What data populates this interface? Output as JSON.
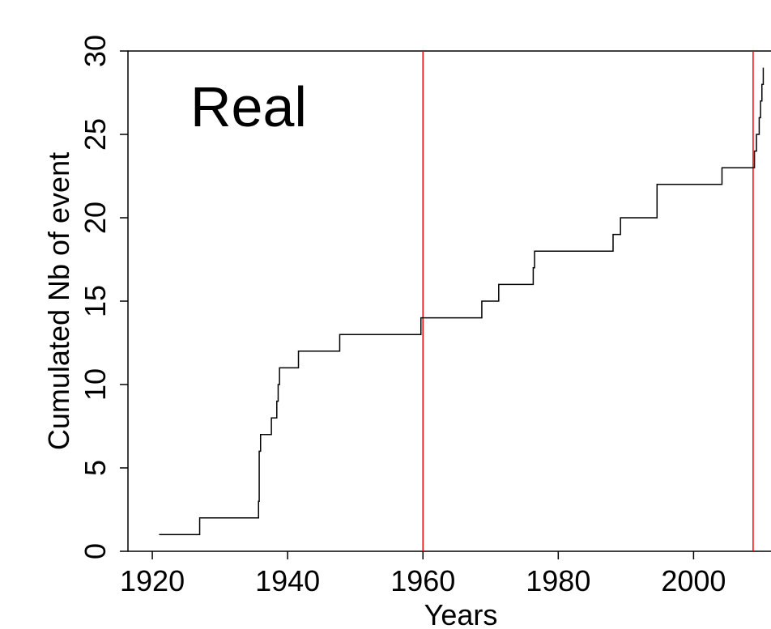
{
  "chart_data": {
    "type": "step",
    "annotation": "Real",
    "x_label": "Years",
    "y_label": "Cumulated Nb of event",
    "x": [
      1921,
      1927,
      1935.7,
      1935.8,
      1936,
      1937.6,
      1938.4,
      1938.6,
      1938.8,
      1941.6,
      1947.7,
      1959.7,
      1968.7,
      1971.2,
      1976.3,
      1976.5,
      1988.1,
      1989.2,
      1994.6,
      2004.2,
      2009.0,
      2009.3,
      2009.7,
      2009.9,
      2010.1,
      2010.3
    ],
    "values": [
      1,
      2,
      3,
      6,
      7,
      8,
      9,
      10,
      11,
      12,
      13,
      14,
      15,
      16,
      17,
      18,
      19,
      20,
      22,
      23,
      24,
      25,
      26,
      27,
      28,
      29
    ],
    "color": "#000000",
    "vlines": [
      1960,
      2008.8
    ],
    "vline_color": "#ff0000",
    "xlim": [
      1916.4,
      2013
    ],
    "ylim": [
      0,
      30
    ],
    "xticks": [
      1920,
      1940,
      1960,
      1980,
      2000
    ],
    "yticks": [
      0,
      5,
      10,
      15,
      20,
      25,
      30
    ]
  }
}
